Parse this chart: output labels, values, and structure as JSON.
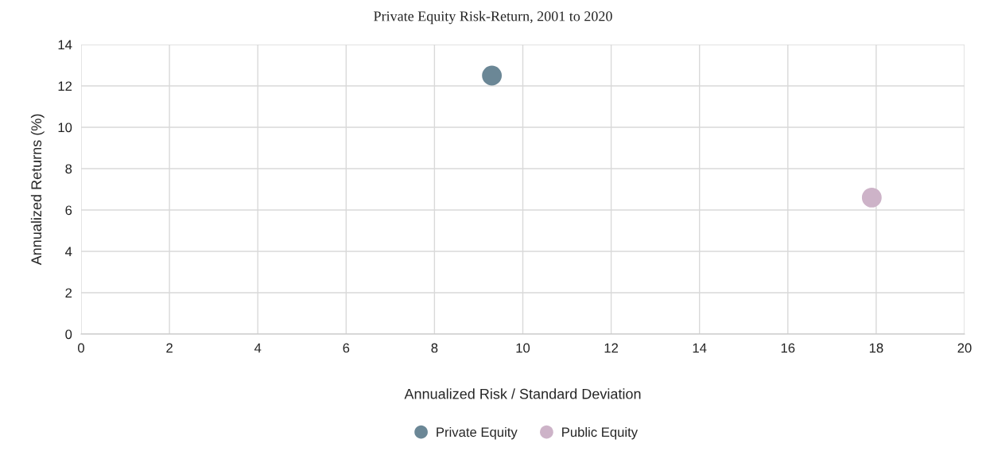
{
  "chart_data": {
    "type": "scatter",
    "title": "Private Equity Risk-Return, 2001 to 2020",
    "xlabel": "Annualized Risk / Standard Deviation",
    "ylabel": "Annualized Returns (%)",
    "series": [
      {
        "name": "Private Equity",
        "color": "#6b8796",
        "x": [
          9.3
        ],
        "values": [
          12.5
        ]
      },
      {
        "name": "Public Equity",
        "color": "#cdb3c8",
        "x": [
          17.9
        ],
        "values": [
          6.6
        ]
      }
    ],
    "xlim": [
      0,
      20
    ],
    "xticks": [
      0,
      2,
      4,
      6,
      8,
      10,
      12,
      14,
      16,
      18,
      20
    ],
    "ylim": [
      0,
      14
    ],
    "yticks": [
      0,
      2,
      4,
      6,
      8,
      10,
      12,
      14
    ],
    "grid": true,
    "legend": "bottom",
    "marker": "circle"
  }
}
